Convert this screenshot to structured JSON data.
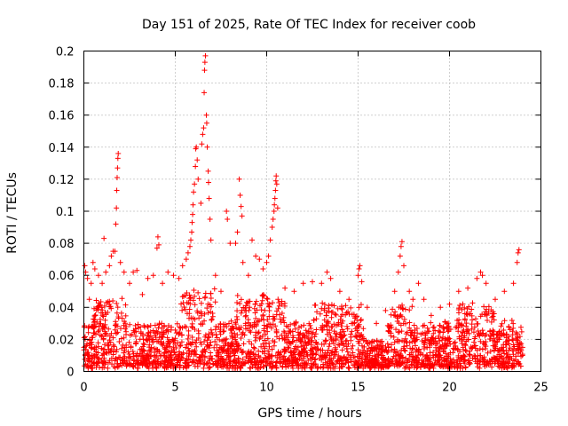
{
  "chart_data": {
    "type": "scatter",
    "title": "Day 151 of 2025, Rate Of TEC Index for receiver coob",
    "xlabel": "GPS time / hours",
    "ylabel": "ROTI / TECUs",
    "xlim": [
      0,
      25
    ],
    "ylim": [
      0,
      0.2
    ],
    "xticks": [
      0,
      5,
      10,
      15,
      20,
      25
    ],
    "xtick_labels": [
      "0",
      "5",
      "10",
      "15",
      "20",
      "25"
    ],
    "yticks": [
      0,
      0.02,
      0.04,
      0.06,
      0.08,
      0.1,
      0.12,
      0.14,
      0.16,
      0.18,
      0.2
    ],
    "ytick_labels": [
      "0",
      "0.02",
      "0.04",
      "0.06",
      "0.08",
      "0.1",
      "0.12",
      "0.14",
      "0.16",
      "0.18",
      "0.2"
    ],
    "grid": true,
    "marker": "+",
    "color": "#ff0000",
    "series": [
      {
        "name": "ROTI",
        "description_of_density": "dense band of points between 0.005 and ~0.04 TECU across 0-24 h",
        "points": [
          [
            0.0,
            0.015
          ],
          [
            0.05,
            0.066
          ],
          [
            0.1,
            0.062
          ],
          [
            0.2,
            0.058
          ],
          [
            0.3,
            0.045
          ],
          [
            0.4,
            0.055
          ],
          [
            0.5,
            0.068
          ],
          [
            0.6,
            0.064
          ],
          [
            0.8,
            0.06
          ],
          [
            1.0,
            0.055
          ],
          [
            1.1,
            0.083
          ],
          [
            1.2,
            0.062
          ],
          [
            1.4,
            0.066
          ],
          [
            1.5,
            0.072
          ],
          [
            1.6,
            0.075
          ],
          [
            1.7,
            0.075
          ],
          [
            1.75,
            0.092
          ],
          [
            1.78,
            0.102
          ],
          [
            1.8,
            0.113
          ],
          [
            1.82,
            0.121
          ],
          [
            1.84,
            0.127
          ],
          [
            1.86,
            0.133
          ],
          [
            1.88,
            0.136
          ],
          [
            2.0,
            0.068
          ],
          [
            2.2,
            0.062
          ],
          [
            2.5,
            0.055
          ],
          [
            2.7,
            0.062
          ],
          [
            2.9,
            0.063
          ],
          [
            3.2,
            0.048
          ],
          [
            3.5,
            0.058
          ],
          [
            3.8,
            0.06
          ],
          [
            4.0,
            0.077
          ],
          [
            4.05,
            0.084
          ],
          [
            4.1,
            0.079
          ],
          [
            4.3,
            0.055
          ],
          [
            4.6,
            0.062
          ],
          [
            4.9,
            0.06
          ],
          [
            5.2,
            0.058
          ],
          [
            5.4,
            0.066
          ],
          [
            5.6,
            0.07
          ],
          [
            5.7,
            0.074
          ],
          [
            5.8,
            0.078
          ],
          [
            5.85,
            0.082
          ],
          [
            5.9,
            0.087
          ],
          [
            5.92,
            0.093
          ],
          [
            5.95,
            0.098
          ],
          [
            5.97,
            0.104
          ],
          [
            6.0,
            0.112
          ],
          [
            6.05,
            0.117
          ],
          [
            6.1,
            0.128
          ],
          [
            6.12,
            0.139
          ],
          [
            6.15,
            0.14
          ],
          [
            6.2,
            0.132
          ],
          [
            6.25,
            0.12
          ],
          [
            6.4,
            0.105
          ],
          [
            6.45,
            0.142
          ],
          [
            6.5,
            0.148
          ],
          [
            6.55,
            0.152
          ],
          [
            6.58,
            0.174
          ],
          [
            6.6,
            0.188
          ],
          [
            6.62,
            0.193
          ],
          [
            6.65,
            0.197
          ],
          [
            6.7,
            0.16
          ],
          [
            6.72,
            0.155
          ],
          [
            6.75,
            0.14
          ],
          [
            6.8,
            0.125
          ],
          [
            6.82,
            0.118
          ],
          [
            6.85,
            0.108
          ],
          [
            6.9,
            0.095
          ],
          [
            6.95,
            0.082
          ],
          [
            7.2,
            0.06
          ],
          [
            7.5,
            0.05
          ],
          [
            7.8,
            0.1
          ],
          [
            7.85,
            0.095
          ],
          [
            8.0,
            0.08
          ],
          [
            8.3,
            0.08
          ],
          [
            8.4,
            0.087
          ],
          [
            8.5,
            0.12
          ],
          [
            8.55,
            0.11
          ],
          [
            8.6,
            0.103
          ],
          [
            8.65,
            0.097
          ],
          [
            8.7,
            0.068
          ],
          [
            9.0,
            0.06
          ],
          [
            9.2,
            0.082
          ],
          [
            9.4,
            0.072
          ],
          [
            9.6,
            0.07
          ],
          [
            9.8,
            0.064
          ],
          [
            10.0,
            0.068
          ],
          [
            10.1,
            0.072
          ],
          [
            10.2,
            0.082
          ],
          [
            10.3,
            0.09
          ],
          [
            10.35,
            0.095
          ],
          [
            10.4,
            0.1
          ],
          [
            10.42,
            0.104
          ],
          [
            10.45,
            0.108
          ],
          [
            10.48,
            0.113
          ],
          [
            10.5,
            0.119
          ],
          [
            10.52,
            0.122
          ],
          [
            10.55,
            0.117
          ],
          [
            10.6,
            0.102
          ],
          [
            11.0,
            0.052
          ],
          [
            11.5,
            0.05
          ],
          [
            12.0,
            0.055
          ],
          [
            12.5,
            0.056
          ],
          [
            13.0,
            0.055
          ],
          [
            13.3,
            0.062
          ],
          [
            13.5,
            0.058
          ],
          [
            14.0,
            0.05
          ],
          [
            14.5,
            0.045
          ],
          [
            15.0,
            0.06
          ],
          [
            15.05,
            0.064
          ],
          [
            15.1,
            0.066
          ],
          [
            15.2,
            0.056
          ],
          [
            15.5,
            0.04
          ],
          [
            16.0,
            0.03
          ],
          [
            16.5,
            0.038
          ],
          [
            17.0,
            0.05
          ],
          [
            17.2,
            0.062
          ],
          [
            17.3,
            0.072
          ],
          [
            17.35,
            0.078
          ],
          [
            17.4,
            0.081
          ],
          [
            17.5,
            0.066
          ],
          [
            17.8,
            0.05
          ],
          [
            18.0,
            0.045
          ],
          [
            18.3,
            0.055
          ],
          [
            18.6,
            0.045
          ],
          [
            19.0,
            0.035
          ],
          [
            19.5,
            0.04
          ],
          [
            20.0,
            0.042
          ],
          [
            20.5,
            0.05
          ],
          [
            21.0,
            0.052
          ],
          [
            21.5,
            0.058
          ],
          [
            21.7,
            0.062
          ],
          [
            21.8,
            0.06
          ],
          [
            22.0,
            0.055
          ],
          [
            22.5,
            0.045
          ],
          [
            23.0,
            0.05
          ],
          [
            23.5,
            0.055
          ],
          [
            23.7,
            0.068
          ],
          [
            23.75,
            0.074
          ],
          [
            23.8,
            0.076
          ],
          [
            24.0,
            0.015
          ]
        ]
      }
    ],
    "baseline_band": {
      "x_range": [
        0,
        24
      ],
      "y_min": 0.003,
      "y_mode": 0.015,
      "y_upper_typical": 0.04
    }
  }
}
